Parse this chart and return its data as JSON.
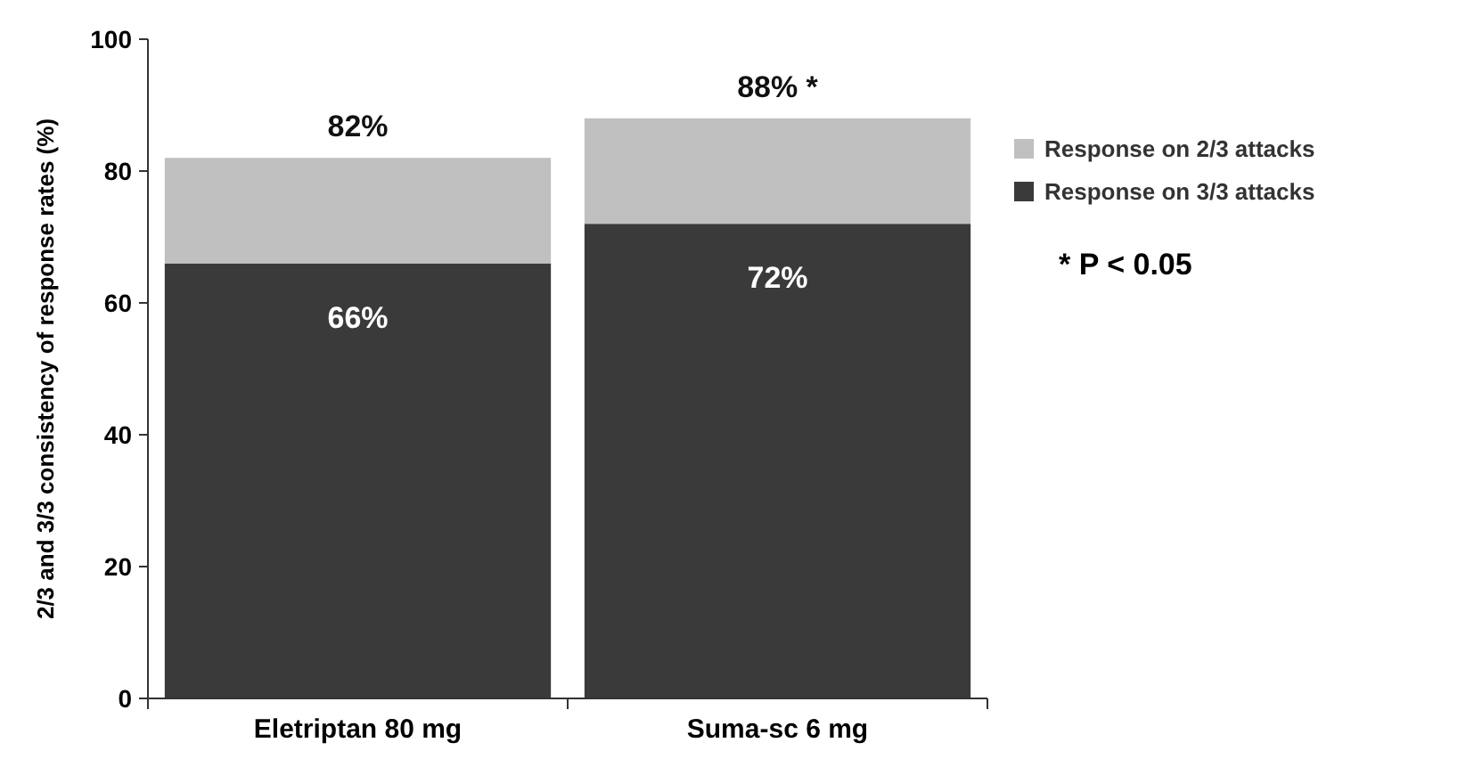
{
  "chart_data": {
    "type": "bar",
    "stacked": true,
    "ylabel": "2/3 and 3/3 consistency of response rates (%)",
    "categories": [
      "Eletriptan 80 mg",
      "Suma-sc 6 mg"
    ],
    "series": [
      {
        "name": "Response on 3/3 attacks",
        "color": "#3a3a3a",
        "values": [
          66,
          72
        ],
        "value_labels": [
          "66%",
          "72%"
        ]
      },
      {
        "name": "Response on 2/3 attacks",
        "color": "#c0c0c0",
        "values": [
          16,
          16
        ]
      }
    ],
    "totals": [
      "82%",
      "88% *"
    ],
    "ylim": [
      0,
      100
    ],
    "yticks": [
      0,
      20,
      40,
      60,
      80,
      100
    ],
    "grid": false,
    "legend": "right",
    "annotations": [
      "* P < 0.05"
    ]
  }
}
